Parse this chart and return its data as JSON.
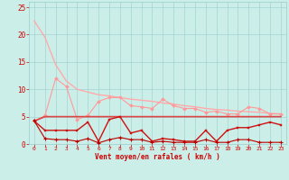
{
  "xlabel": "Vent moyen/en rafales ( km/h )",
  "background_color": "#cceee8",
  "xlim": [
    -0.5,
    23.5
  ],
  "ylim": [
    0,
    26
  ],
  "yticks": [
    0,
    5,
    10,
    15,
    20,
    25
  ],
  "xticks": [
    0,
    1,
    2,
    3,
    4,
    5,
    6,
    7,
    8,
    9,
    10,
    11,
    12,
    13,
    14,
    15,
    16,
    17,
    18,
    19,
    20,
    21,
    22,
    23
  ],
  "line1_light": {
    "x": [
      0,
      1,
      2,
      3,
      4,
      5,
      6,
      7,
      8,
      9,
      10,
      11,
      12,
      13,
      14,
      15,
      16,
      17,
      18,
      19,
      20,
      21,
      22,
      23
    ],
    "y": [
      22.5,
      19.5,
      14.5,
      11.5,
      10,
      9.5,
      9,
      8.8,
      8.5,
      8.2,
      8,
      7.8,
      7.5,
      7.3,
      7.0,
      6.8,
      6.5,
      6.3,
      6.2,
      6.0,
      5.9,
      5.8,
      5.6,
      5.5
    ],
    "color": "#ffaaaa",
    "lw": 1.0
  },
  "line2_medium_pink": {
    "x": [
      0,
      1,
      2,
      3,
      4,
      5,
      6,
      7,
      8,
      9,
      10,
      11,
      12,
      13,
      14,
      15,
      16,
      17,
      18,
      19,
      20,
      21,
      22,
      23
    ],
    "y": [
      4.2,
      5.2,
      12.0,
      10.5,
      4.5,
      5.2,
      7.8,
      8.5,
      8.5,
      7.0,
      6.8,
      6.5,
      8.2,
      7.0,
      6.5,
      6.5,
      5.8,
      6.0,
      5.5,
      5.5,
      6.8,
      6.5,
      5.5,
      5.5
    ],
    "color": "#ff9999",
    "lw": 0.8,
    "marker": "D",
    "ms": 2.0
  },
  "line3_dark_trend": {
    "x": [
      0,
      1,
      2,
      3,
      4,
      5,
      6,
      7,
      8,
      9,
      10,
      11,
      12,
      13,
      14,
      15,
      16,
      17,
      18,
      19,
      20,
      21,
      22,
      23
    ],
    "y": [
      4.2,
      5.0,
      5.0,
      5.0,
      5.0,
      5.0,
      5.0,
      5.0,
      5.0,
      5.0,
      5.0,
      5.0,
      5.0,
      5.0,
      5.0,
      5.0,
      5.0,
      5.0,
      5.0,
      5.0,
      5.0,
      5.0,
      5.0,
      5.0
    ],
    "color": "#dd4444",
    "lw": 1.2
  },
  "line4_red_marker": {
    "x": [
      0,
      1,
      2,
      3,
      4,
      5,
      6,
      7,
      8,
      9,
      10,
      11,
      12,
      13,
      14,
      15,
      16,
      17,
      18,
      19,
      20,
      21,
      22,
      23
    ],
    "y": [
      4.2,
      2.5,
      2.5,
      2.5,
      2.5,
      4.0,
      0.5,
      4.5,
      5.0,
      2.0,
      2.5,
      0.5,
      1.0,
      0.8,
      0.5,
      0.5,
      2.5,
      0.5,
      2.5,
      3.0,
      3.0,
      3.5,
      4.0,
      3.5
    ],
    "color": "#cc1111",
    "lw": 1.0,
    "marker": "s",
    "ms": 2.0
  },
  "line5_bottom": {
    "x": [
      0,
      1,
      2,
      3,
      4,
      5,
      6,
      7,
      8,
      9,
      10,
      11,
      12,
      13,
      14,
      15,
      16,
      17,
      18,
      19,
      20,
      21,
      22,
      23
    ],
    "y": [
      4.2,
      1.0,
      0.8,
      0.8,
      0.5,
      1.0,
      0.2,
      0.8,
      1.2,
      0.8,
      0.8,
      0.3,
      0.5,
      0.3,
      0.3,
      0.3,
      0.8,
      0.3,
      0.3,
      0.8,
      0.8,
      0.3,
      0.3,
      0.3
    ],
    "color": "#bb0000",
    "lw": 0.8,
    "marker": "+",
    "ms": 2.5
  }
}
